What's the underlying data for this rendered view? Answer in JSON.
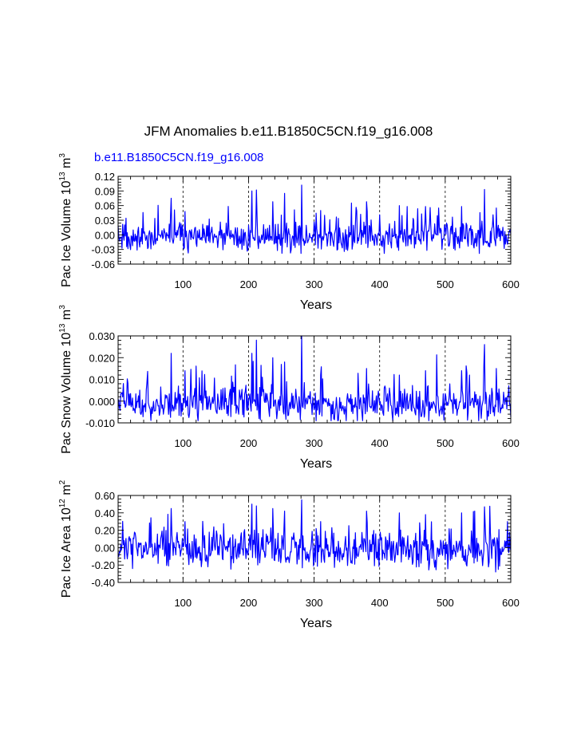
{
  "title": "JFM Anomalies b.e11.B1850C5CN.f19_g16.008",
  "run_label": "b.e11.B1850C5CN.f19_g16.008",
  "colors": {
    "series": "#0000ff",
    "axes": "#000000",
    "grid": "#000000"
  },
  "chart_data": [
    {
      "type": "line",
      "title": "",
      "xlabel": "Years",
      "ylabel": {
        "main": "Pac Ice Volume 10",
        "sup": "13",
        "unit": " m",
        "unit_sup": "3"
      },
      "xlim": [
        1,
        600
      ],
      "ylim": [
        -0.06,
        0.12
      ],
      "xticks": [
        100,
        200,
        300,
        400,
        500,
        600
      ],
      "yticks": [
        "-0.06",
        "-0.03",
        "0.00",
        "0.03",
        "0.06",
        "0.09",
        "0.12"
      ],
      "grid_x": [
        100,
        200,
        300,
        400,
        500
      ],
      "series": [
        {
          "name": "b.e11.B1850C5CN.f19_g16.008",
          "seed": 11,
          "amp": 0.018,
          "offset": -0.006,
          "peaks": [
            [
              82,
              0.075
            ],
            [
              103,
              0.048
            ],
            [
              205,
              0.09
            ],
            [
              212,
              0.092
            ],
            [
              237,
              0.068
            ],
            [
              255,
              0.085
            ],
            [
              281,
              0.102
            ],
            [
              310,
              0.05
            ],
            [
              380,
              0.068
            ],
            [
              430,
              0.06
            ],
            [
              470,
              0.058
            ],
            [
              490,
              0.055
            ],
            [
              525,
              0.058
            ],
            [
              560,
              0.093
            ],
            [
              578,
              0.055
            ]
          ],
          "min": -0.038,
          "max": 0.102
        }
      ]
    },
    {
      "type": "line",
      "title": "",
      "xlabel": "Years",
      "ylabel": {
        "main": "Pac Snow Volume 10",
        "sup": "13",
        "unit": " m",
        "unit_sup": "3"
      },
      "xlim": [
        1,
        600
      ],
      "ylim": [
        -0.01,
        0.03
      ],
      "xticks": [
        100,
        200,
        300,
        400,
        500,
        600
      ],
      "yticks": [
        "-0.010",
        "0.000",
        "0.010",
        "0.020",
        "0.030"
      ],
      "grid_x": [
        100,
        200,
        300,
        400,
        500
      ],
      "series": [
        {
          "name": "b.e11.B1850C5CN.f19_g16.008",
          "seed": 23,
          "amp": 0.0045,
          "offset": -0.0015,
          "peaks": [
            [
              82,
              0.022
            ],
            [
              103,
              0.014
            ],
            [
              205,
              0.022
            ],
            [
              212,
              0.028
            ],
            [
              237,
              0.02
            ],
            [
              255,
              0.018
            ],
            [
              281,
              0.03
            ],
            [
              310,
              0.012
            ],
            [
              380,
              0.015
            ],
            [
              430,
              0.012
            ],
            [
              470,
              0.014
            ],
            [
              525,
              0.014
            ],
            [
              560,
              0.026
            ],
            [
              578,
              0.015
            ]
          ],
          "min": -0.009,
          "max": 0.03
        }
      ]
    },
    {
      "type": "line",
      "title": "",
      "xlabel": "Years",
      "ylabel": {
        "main": "Pac Ice Area 10",
        "sup": "12",
        "unit": " m",
        "unit_sup": "2"
      },
      "xlim": [
        1,
        600
      ],
      "ylim": [
        -0.4,
        0.6
      ],
      "xticks": [
        100,
        200,
        300,
        400,
        500,
        600
      ],
      "yticks": [
        "-0.40",
        "-0.20",
        "0.00",
        "0.20",
        "0.40",
        "0.60"
      ],
      "grid_x": [
        100,
        200,
        300,
        400,
        500
      ],
      "series": [
        {
          "name": "b.e11.B1850C5CN.f19_g16.008",
          "seed": 37,
          "amp": 0.13,
          "offset": -0.02,
          "peaks": [
            [
              82,
              0.45
            ],
            [
              103,
              0.3
            ],
            [
              205,
              0.5
            ],
            [
              212,
              0.48
            ],
            [
              237,
              0.45
            ],
            [
              255,
              0.42
            ],
            [
              281,
              0.55
            ],
            [
              310,
              0.3
            ],
            [
              380,
              0.42
            ],
            [
              430,
              0.4
            ],
            [
              470,
              0.38
            ],
            [
              525,
              0.4
            ],
            [
              545,
              0.42
            ],
            [
              560,
              0.47
            ],
            [
              595,
              0.3
            ]
          ],
          "min": -0.34,
          "max": 0.55
        }
      ]
    }
  ]
}
